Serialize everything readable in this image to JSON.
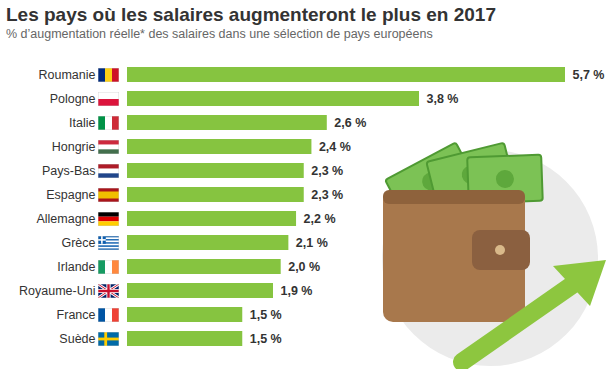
{
  "chart_data": {
    "type": "bar",
    "title": "Les pays où les salaires augmenteront le plus en 2017",
    "subtitle": "% d’augmentation réelle* des salaires dans une sélection de pays européens",
    "orientation": "horizontal",
    "categories": [
      "Roumanie",
      "Pologne",
      "Italie",
      "Hongrie",
      "Pays-Bas",
      "Espagne",
      "Allemagne",
      "Grèce",
      "Irlande",
      "Royaume-Uni",
      "France",
      "Suède"
    ],
    "values": [
      5.7,
      3.8,
      2.6,
      2.4,
      2.3,
      2.3,
      2.2,
      2.1,
      2.0,
      1.9,
      1.5,
      1.5
    ],
    "value_labels": [
      "5,7 %",
      "3,8 %",
      "2,6 %",
      "2,4 %",
      "2,3 %",
      "2,3 %",
      "2,2 %",
      "2,1 %",
      "2,0 %",
      "1,9 %",
      "1,5 %",
      "1,5 %"
    ],
    "color": "#86c440",
    "data_labels": true,
    "tick_labels": "y"
  }
}
